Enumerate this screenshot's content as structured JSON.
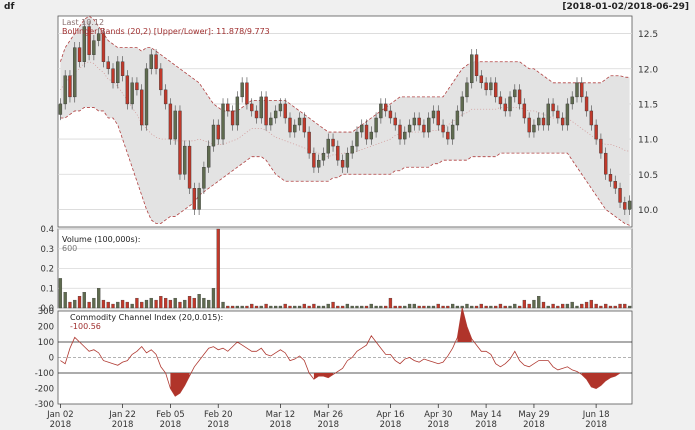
{
  "header": {
    "symbol": "df",
    "date_range": "[2018-01-02/2018-06-29]"
  },
  "chart_data": [
    {
      "type": "candlestick",
      "panel": "price",
      "colors": {
        "up": "#5f6b4f",
        "down": "#c0392b",
        "band_fill": "#e3e3e3",
        "band_line": "#b04040",
        "mavg": "#d09090"
      },
      "legend": {
        "last_label": "Last 10.12",
        "bbands_label": "Bollinger Bands (20,2) [Upper/Lower]: 11.878/9.773"
      },
      "ylim": [
        9.75,
        12.75
      ],
      "y_ticks": [
        "10.0",
        "10.5",
        "11.0",
        "11.5",
        "12.0",
        "12.5"
      ],
      "x_ticks": [
        {
          "label": "Jan 02",
          "year": "2018"
        },
        {
          "label": "Jan 22",
          "year": "2018"
        },
        {
          "label": "Feb 05",
          "year": "2018"
        },
        {
          "label": "Feb 20",
          "year": "2018"
        },
        {
          "label": "Mar 12",
          "year": "2018"
        },
        {
          "label": "Mar 26",
          "year": "2018"
        },
        {
          "label": "Apr 16",
          "year": "2018"
        },
        {
          "label": "Apr 30",
          "year": "2018"
        },
        {
          "label": "May 14",
          "year": "2018"
        },
        {
          "label": "May 29",
          "year": "2018"
        },
        {
          "label": "Jun 18",
          "year": "2018"
        }
      ],
      "close": [
        11.5,
        11.9,
        11.6,
        12.3,
        12.1,
        12.6,
        12.2,
        12.4,
        12.5,
        12.1,
        12.0,
        11.8,
        12.1,
        11.9,
        11.5,
        11.8,
        11.7,
        11.2,
        12.0,
        12.2,
        12.0,
        11.7,
        11.5,
        11.0,
        11.4,
        10.5,
        10.9,
        10.3,
        10.0,
        10.3,
        10.6,
        10.9,
        11.2,
        11.0,
        11.5,
        11.4,
        11.2,
        11.6,
        11.8,
        11.5,
        11.4,
        11.3,
        11.6,
        11.2,
        11.3,
        11.4,
        11.5,
        11.3,
        11.1,
        11.2,
        11.3,
        11.1,
        10.8,
        10.6,
        10.7,
        10.8,
        11.0,
        10.9,
        10.7,
        10.6,
        10.8,
        10.9,
        11.1,
        11.2,
        11.0,
        11.1,
        11.3,
        11.5,
        11.4,
        11.3,
        11.2,
        11.0,
        11.1,
        11.2,
        11.3,
        11.2,
        11.1,
        11.3,
        11.4,
        11.2,
        11.1,
        11.0,
        11.2,
        11.4,
        11.6,
        11.8,
        12.2,
        11.9,
        11.8,
        11.7,
        11.8,
        11.6,
        11.5,
        11.4,
        11.6,
        11.7,
        11.5,
        11.3,
        11.1,
        11.2,
        11.3,
        11.2,
        11.5,
        11.4,
        11.3,
        11.2,
        11.5,
        11.6,
        11.8,
        11.6,
        11.4,
        11.2,
        11.0,
        10.8,
        10.5,
        10.4,
        10.3,
        10.1,
        10.0,
        10.12
      ],
      "bb_upper": [
        12.1,
        12.3,
        12.4,
        12.5,
        12.6,
        12.7,
        12.75,
        12.7,
        12.6,
        12.5,
        12.4,
        12.35,
        12.3,
        12.3,
        12.3,
        12.3,
        12.3,
        12.25,
        12.3,
        12.3,
        12.25,
        12.2,
        12.15,
        12.1,
        12.05,
        12.0,
        11.95,
        11.9,
        11.85,
        11.8,
        11.7,
        11.6,
        11.5,
        11.45,
        11.4,
        11.4,
        11.4,
        11.4,
        11.45,
        11.5,
        11.55,
        11.55,
        11.55,
        11.55,
        11.55,
        11.55,
        11.55,
        11.55,
        11.5,
        11.45,
        11.4,
        11.35,
        11.3,
        11.25,
        11.2,
        11.15,
        11.1,
        11.1,
        11.1,
        11.1,
        11.1,
        11.1,
        11.15,
        11.2,
        11.25,
        11.3,
        11.35,
        11.4,
        11.45,
        11.5,
        11.55,
        11.6,
        11.6,
        11.6,
        11.6,
        11.6,
        11.6,
        11.6,
        11.6,
        11.6,
        11.6,
        11.7,
        11.8,
        11.9,
        12.0,
        12.05,
        12.1,
        12.1,
        12.1,
        12.1,
        12.1,
        12.1,
        12.1,
        12.1,
        12.1,
        12.1,
        12.1,
        12.05,
        12.0,
        12.0,
        11.95,
        11.9,
        11.85,
        11.8,
        11.8,
        11.8,
        11.8,
        11.8,
        11.8,
        11.8,
        11.8,
        11.8,
        11.8,
        11.8,
        11.85,
        11.9,
        11.9,
        11.9,
        11.88,
        11.878
      ],
      "bb_lower": [
        11.3,
        11.3,
        11.35,
        11.4,
        11.4,
        11.45,
        11.45,
        11.45,
        11.4,
        11.4,
        11.3,
        11.3,
        11.2,
        11.0,
        10.8,
        10.6,
        10.4,
        10.2,
        10.0,
        9.85,
        9.8,
        9.8,
        9.85,
        9.9,
        9.9,
        9.95,
        10.0,
        10.05,
        10.1,
        10.2,
        10.25,
        10.3,
        10.35,
        10.4,
        10.45,
        10.5,
        10.55,
        10.6,
        10.65,
        10.7,
        10.75,
        10.75,
        10.75,
        10.7,
        10.6,
        10.5,
        10.45,
        10.4,
        10.4,
        10.4,
        10.4,
        10.4,
        10.4,
        10.4,
        10.4,
        10.4,
        10.4,
        10.45,
        10.45,
        10.5,
        10.5,
        10.5,
        10.5,
        10.5,
        10.5,
        10.5,
        10.5,
        10.5,
        10.5,
        10.5,
        10.55,
        10.55,
        10.6,
        10.6,
        10.6,
        10.6,
        10.6,
        10.6,
        10.65,
        10.65,
        10.7,
        10.7,
        10.7,
        10.7,
        10.7,
        10.7,
        10.75,
        10.75,
        10.75,
        10.75,
        10.75,
        10.75,
        10.8,
        10.8,
        10.8,
        10.8,
        10.8,
        10.8,
        10.8,
        10.8,
        10.8,
        10.8,
        10.8,
        10.8,
        10.8,
        10.8,
        10.8,
        10.7,
        10.6,
        10.5,
        10.4,
        10.3,
        10.2,
        10.1,
        10.0,
        9.95,
        9.9,
        9.85,
        9.8,
        9.773
      ]
    },
    {
      "type": "bar",
      "panel": "volume",
      "title": "Volume (100,000s):",
      "last_value": "600",
      "ylim": [
        0,
        0.4
      ],
      "y_ticks": [
        "0.0",
        "0.1",
        "0.2",
        "0.3",
        "0.4"
      ],
      "values": [
        0.15,
        0.08,
        0.03,
        0.04,
        0.06,
        0.08,
        0.03,
        0.05,
        0.1,
        0.04,
        0.03,
        0.02,
        0.03,
        0.04,
        0.03,
        0.02,
        0.05,
        0.03,
        0.04,
        0.05,
        0.04,
        0.06,
        0.05,
        0.04,
        0.05,
        0.03,
        0.04,
        0.06,
        0.05,
        0.07,
        0.05,
        0.04,
        0.1,
        0.4,
        0.03,
        0.01,
        0.01,
        0.01,
        0.01,
        0.01,
        0.02,
        0.01,
        0.01,
        0.02,
        0.01,
        0.01,
        0.01,
        0.02,
        0.01,
        0.01,
        0.01,
        0.02,
        0.01,
        0.02,
        0.01,
        0.01,
        0.02,
        0.03,
        0.01,
        0.01,
        0.02,
        0.01,
        0.01,
        0.01,
        0.01,
        0.02,
        0.01,
        0.01,
        0.01,
        0.05,
        0.01,
        0.01,
        0.01,
        0.02,
        0.02,
        0.01,
        0.01,
        0.01,
        0.01,
        0.02,
        0.01,
        0.01,
        0.02,
        0.01,
        0.01,
        0.02,
        0.01,
        0.01,
        0.02,
        0.01,
        0.01,
        0.01,
        0.02,
        0.01,
        0.01,
        0.02,
        0.01,
        0.04,
        0.02,
        0.04,
        0.06,
        0.03,
        0.01,
        0.02,
        0.01,
        0.02,
        0.02,
        0.03,
        0.01,
        0.02,
        0.03,
        0.04,
        0.02,
        0.01,
        0.02,
        0.01,
        0.01,
        0.02,
        0.02,
        0.01
      ]
    },
    {
      "type": "line",
      "panel": "cci",
      "title": "Commodity Channel Index (20,0.015):",
      "last_value": "-100.56",
      "ylim": [
        -300,
        300
      ],
      "y_ticks": [
        "-300",
        "-200",
        "-100",
        "0",
        "100",
        "200",
        "300"
      ],
      "reference_lines": [
        100,
        0,
        -100
      ],
      "values": [
        -20,
        -40,
        60,
        130,
        100,
        70,
        40,
        50,
        30,
        -20,
        -30,
        -40,
        -50,
        -30,
        -20,
        20,
        40,
        70,
        30,
        50,
        20,
        -60,
        -100,
        -200,
        -250,
        -230,
        -180,
        -120,
        -60,
        -20,
        20,
        60,
        70,
        50,
        60,
        40,
        70,
        100,
        80,
        60,
        40,
        40,
        60,
        20,
        10,
        30,
        50,
        30,
        -20,
        -10,
        10,
        -20,
        -100,
        -140,
        -120,
        -120,
        -130,
        -110,
        -90,
        -70,
        -20,
        0,
        40,
        60,
        80,
        140,
        100,
        60,
        20,
        20,
        -20,
        -40,
        -10,
        0,
        -20,
        -30,
        -10,
        -20,
        -30,
        -40,
        -30,
        10,
        60,
        130,
        320,
        200,
        120,
        80,
        40,
        40,
        20,
        -40,
        -60,
        -40,
        -10,
        40,
        -20,
        -50,
        -60,
        -40,
        -20,
        -20,
        -20,
        -60,
        -80,
        -70,
        -60,
        -80,
        -90,
        -110,
        -140,
        -190,
        -200,
        -180,
        -150,
        -130,
        -120,
        -100.56
      ]
    }
  ]
}
